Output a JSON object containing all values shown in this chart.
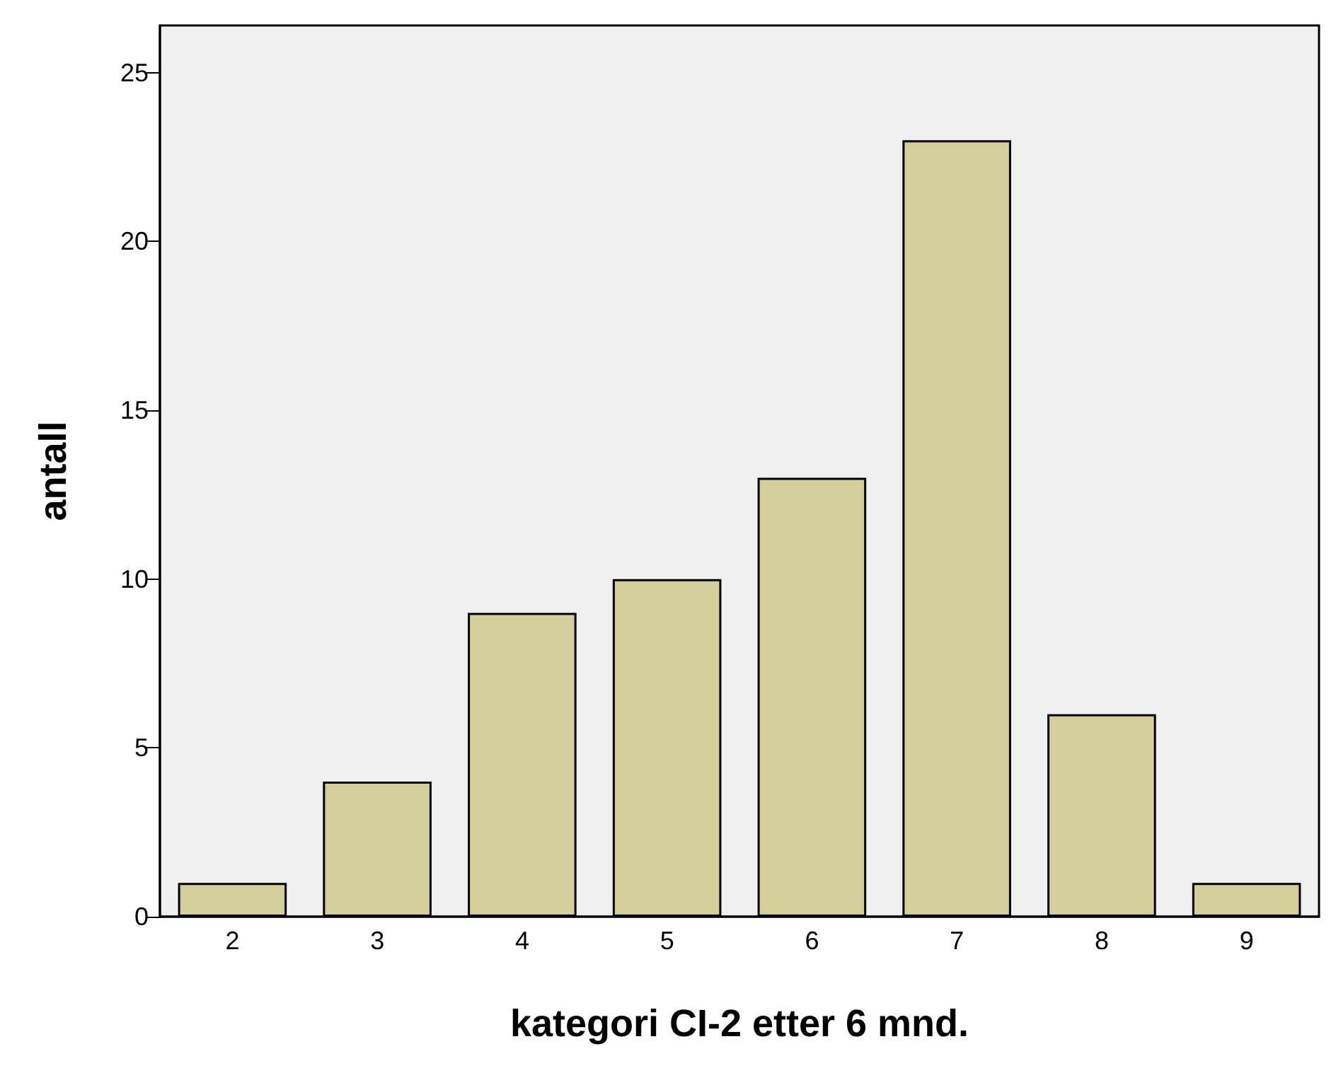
{
  "chart_data": {
    "type": "bar",
    "xlabel": "kategori CI-2 etter 6 mnd.",
    "ylabel": "antall",
    "categories": [
      "2",
      "3",
      "4",
      "5",
      "6",
      "7",
      "8",
      "9"
    ],
    "values": [
      1,
      4,
      9,
      10,
      13,
      23,
      6,
      1
    ],
    "color": "#d3ce9a",
    "ylim": [
      0,
      26.4
    ],
    "yticks": [
      0,
      5,
      10,
      15,
      20,
      25
    ],
    "grid": false
  }
}
